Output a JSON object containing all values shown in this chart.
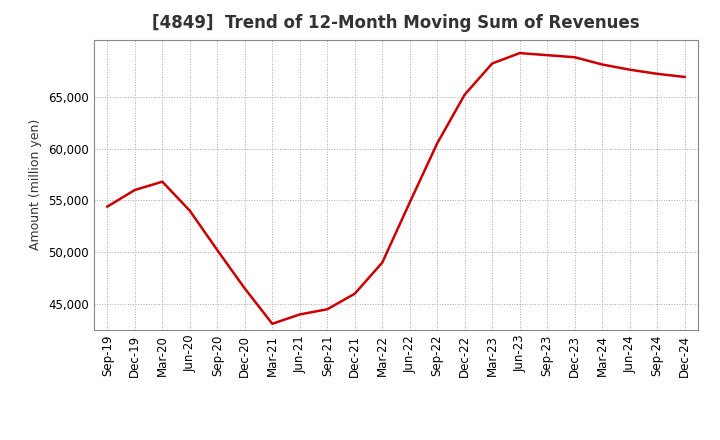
{
  "title": "[4849]  Trend of 12-Month Moving Sum of Revenues",
  "ylabel": "Amount (million yen)",
  "line_color": "#cc0000",
  "line_width": 1.8,
  "background_color": "#ffffff",
  "plot_bg_color": "#ffffff",
  "grid_color": "#aaaaaa",
  "x_labels": [
    "Sep-19",
    "Dec-19",
    "Mar-20",
    "Jun-20",
    "Sep-20",
    "Dec-20",
    "Mar-21",
    "Jun-21",
    "Sep-21",
    "Dec-21",
    "Mar-22",
    "Jun-22",
    "Sep-22",
    "Dec-22",
    "Mar-23",
    "Jun-23",
    "Sep-23",
    "Dec-23",
    "Mar-24",
    "Jun-24",
    "Sep-24",
    "Dec-24"
  ],
  "values": [
    54400,
    56000,
    56800,
    54000,
    50200,
    46500,
    43100,
    44000,
    44500,
    46000,
    49000,
    54800,
    60500,
    65200,
    68200,
    69200,
    69000,
    68800,
    68100,
    67600,
    67200,
    66900
  ],
  "ylim_min": 42500,
  "ylim_max": 70500,
  "ytick_values": [
    45000,
    50000,
    55000,
    60000,
    65000
  ],
  "title_fontsize": 12,
  "title_color": "#333333",
  "label_fontsize": 9,
  "tick_fontsize": 8.5
}
